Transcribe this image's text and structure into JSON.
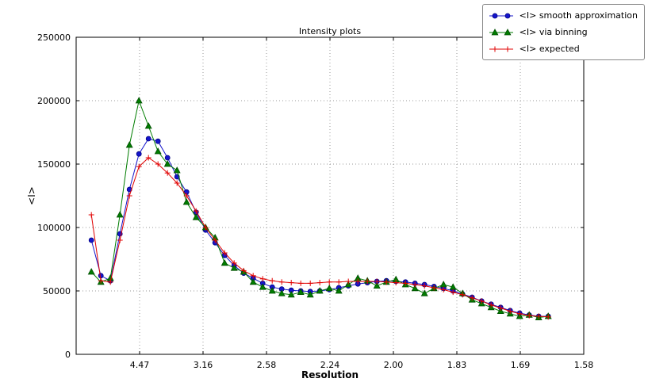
{
  "chart_data": {
    "type": "line",
    "title": "Intensity plots",
    "xlabel": "Resolution",
    "ylabel": "<I>",
    "xlim": [
      0,
      0.4
    ],
    "ylim": [
      0,
      250000
    ],
    "grid": true,
    "legend_position": "upper right",
    "x_ticks": [
      {
        "value": 0.05,
        "label": "4.47"
      },
      {
        "value": 0.1,
        "label": "3.16"
      },
      {
        "value": 0.15,
        "label": "2.58"
      },
      {
        "value": 0.2,
        "label": "2.24"
      },
      {
        "value": 0.25,
        "label": "2.00"
      },
      {
        "value": 0.3,
        "label": "1.83"
      },
      {
        "value": 0.35,
        "label": "1.69"
      },
      {
        "value": 0.4,
        "label": "1.58"
      }
    ],
    "y_ticks": [
      {
        "value": 0,
        "label": "0"
      },
      {
        "value": 50000,
        "label": "50000"
      },
      {
        "value": 100000,
        "label": "100000"
      },
      {
        "value": 150000,
        "label": "150000"
      },
      {
        "value": 200000,
        "label": "200000"
      },
      {
        "value": 250000,
        "label": "250000"
      }
    ],
    "x": [
      0.012,
      0.0195,
      0.027,
      0.0345,
      0.042,
      0.0495,
      0.057,
      0.0645,
      0.072,
      0.0795,
      0.087,
      0.0945,
      0.102,
      0.1095,
      0.117,
      0.1245,
      0.132,
      0.1395,
      0.147,
      0.1545,
      0.162,
      0.1695,
      0.177,
      0.1845,
      0.192,
      0.1995,
      0.207,
      0.2145,
      0.222,
      0.2295,
      0.237,
      0.2445,
      0.252,
      0.2595,
      0.267,
      0.2745,
      0.282,
      0.2895,
      0.297,
      0.3045,
      0.312,
      0.3195,
      0.327,
      0.3345,
      0.342,
      0.3495,
      0.357,
      0.3645,
      0.372
    ],
    "series": [
      {
        "id": "smooth",
        "name": "<I> smooth approximation",
        "color": "#1515cc",
        "edge_color": "#000080",
        "marker": "circle",
        "values": [
          90000,
          62000,
          58000,
          95000,
          130000,
          158000,
          170000,
          168000,
          155000,
          140000,
          128000,
          112000,
          98000,
          88000,
          78000,
          70000,
          64000,
          60000,
          56000,
          53000,
          51500,
          50500,
          50000,
          49500,
          50000,
          51000,
          52500,
          54000,
          55500,
          56500,
          57500,
          58000,
          57500,
          57000,
          56000,
          55000,
          53500,
          52000,
          50000,
          47500,
          45000,
          42000,
          39500,
          37000,
          34500,
          32500,
          31000,
          30000,
          30000
        ]
      },
      {
        "id": "binning",
        "name": "<I> via binning",
        "color": "#007d00",
        "edge_color": "#004d00",
        "marker": "triangle",
        "values": [
          65000,
          57000,
          60000,
          110000,
          165000,
          200000,
          180000,
          160000,
          150000,
          145000,
          120000,
          108000,
          100000,
          92000,
          72000,
          68000,
          65000,
          57000,
          53000,
          50000,
          48000,
          47000,
          49000,
          47000,
          50000,
          52000,
          50000,
          55000,
          60000,
          58000,
          54000,
          57000,
          59000,
          55000,
          52000,
          48000,
          52000,
          55000,
          53000,
          48000,
          43000,
          40000,
          37000,
          34000,
          32000,
          30000,
          31000,
          29000,
          30000
        ]
      },
      {
        "id": "expected",
        "name": "<I> expected",
        "color": "#e00000",
        "edge_color": "#e00000",
        "marker": "plus",
        "values": [
          110000,
          58000,
          57000,
          90000,
          125000,
          148000,
          155000,
          150000,
          143000,
          135000,
          125000,
          113000,
          100000,
          90000,
          80000,
          72000,
          66000,
          62000,
          59500,
          58000,
          57000,
          56500,
          56000,
          56000,
          56500,
          57000,
          57000,
          57500,
          57500,
          57500,
          57500,
          57000,
          56500,
          56000,
          55000,
          54000,
          52500,
          51000,
          49000,
          47000,
          44500,
          42000,
          39000,
          36500,
          34000,
          32000,
          30500,
          30000,
          29500
        ]
      }
    ]
  }
}
